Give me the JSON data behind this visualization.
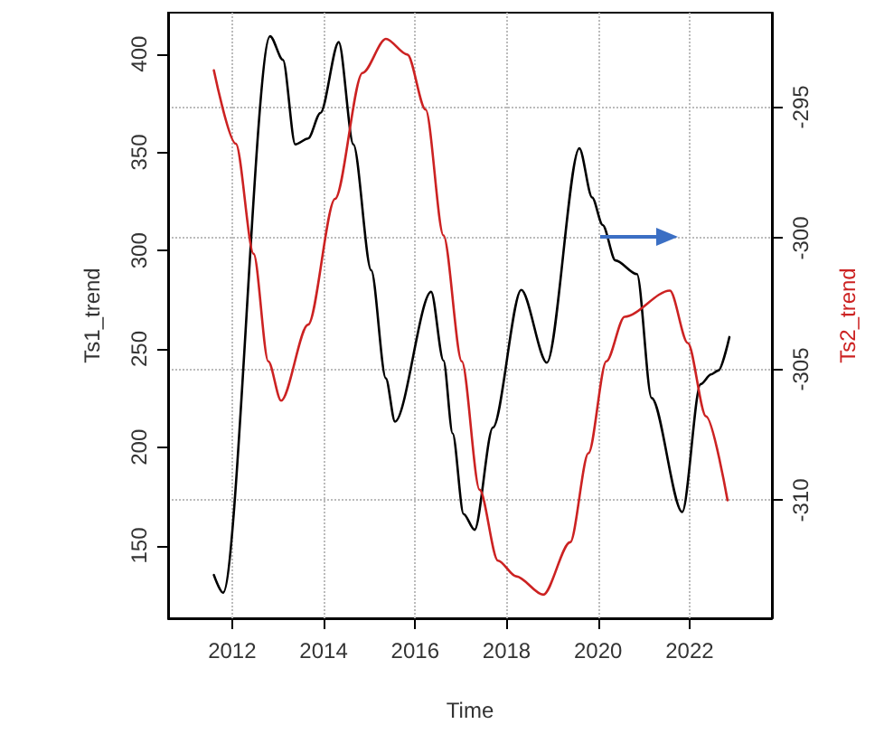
{
  "chart_data": {
    "type": "line",
    "xlabel": "Time",
    "ylabel": "Ts1_trend",
    "y2label": "Ts2_trend",
    "xlim": [
      2010.6,
      2023.8
    ],
    "xticks": [
      2012,
      2014,
      2016,
      2018,
      2020,
      2022
    ],
    "ylim": [
      113,
      421
    ],
    "yticks": [
      150,
      200,
      250,
      300,
      350,
      400
    ],
    "y2lim": [
      -314.5,
      -291.4
    ],
    "y2ticks": [
      -310,
      -305,
      -300,
      -295
    ],
    "grid": true,
    "marker": "none",
    "line_style": "solid",
    "series": [
      {
        "color": "#000000",
        "x": [
          2011.6,
          2011.8,
          2012.83,
          2013.11,
          2013.38,
          2013.66,
          2013.93,
          2014.33,
          2014.65,
          2015.04,
          2015.36,
          2015.56,
          2016.35,
          2016.62,
          2016.82,
          2017.06,
          2017.3,
          2017.7,
          2018.32,
          2018.88,
          2019.59,
          2019.87,
          2020.1,
          2020.38,
          2020.85,
          2021.17,
          2021.84,
          2022.24,
          2022.47,
          2022.63,
          2022.87
        ],
        "values": [
          135,
          126,
          409,
          397,
          354,
          357,
          370,
          406,
          354,
          290,
          235,
          213,
          279,
          244,
          207,
          166,
          158,
          210,
          280,
          243,
          352,
          327,
          313,
          295,
          288,
          225,
          167,
          232,
          237,
          239,
          256
        ]
      },
      {
        "color": "#cc2222",
        "axis": "y2",
        "x": [
          2011.6,
          2012.08,
          2012.47,
          2012.79,
          2013.07,
          2013.66,
          2014.25,
          2014.85,
          2015.36,
          2015.83,
          2016.23,
          2016.62,
          2017.02,
          2017.41,
          2017.81,
          2018.21,
          2018.8,
          2019.39,
          2019.79,
          2020.18,
          2020.58,
          2021.57,
          2021.96,
          2022.36,
          2022.83
        ],
        "values": [
          -293.6,
          -296.4,
          -300.6,
          -304.7,
          -306.2,
          -303.3,
          -298.5,
          -293.7,
          -292.4,
          -293.0,
          -295.1,
          -299.9,
          -304.7,
          -309.6,
          -312.3,
          -312.9,
          -313.6,
          -311.6,
          -308.2,
          -304.7,
          -303.0,
          -302.0,
          -304.0,
          -306.8,
          -310.0
        ]
      }
    ]
  }
}
